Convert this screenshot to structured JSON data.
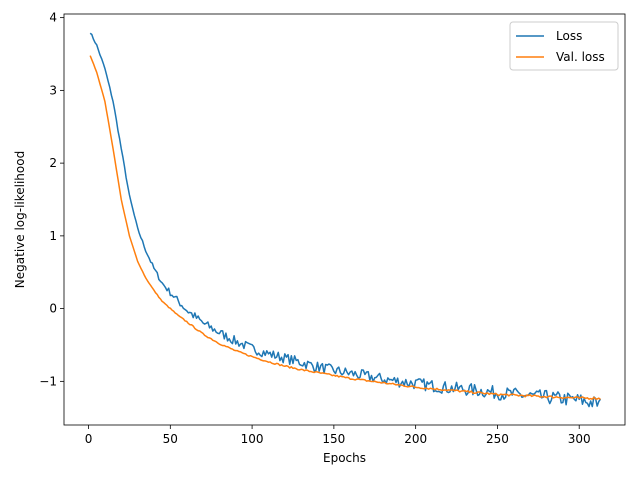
{
  "chart_data": {
    "type": "line",
    "title": "",
    "xlabel": "Epochs",
    "ylabel": "Negative log-likelihood",
    "xlim": [
      -15,
      328
    ],
    "ylim": [
      -1.6,
      4.05
    ],
    "xticks": [
      0,
      50,
      100,
      150,
      200,
      250,
      300
    ],
    "yticks": [
      -1,
      0,
      1,
      2,
      3,
      4
    ],
    "grid": false,
    "legend_position": "top-right",
    "series": [
      {
        "name": "Loss",
        "color": "#1f77b4",
        "anchor_x": [
          1,
          5,
          10,
          15,
          20,
          25,
          30,
          35,
          40,
          45,
          50,
          55,
          60,
          70,
          80,
          90,
          100,
          110,
          120,
          130,
          140,
          150,
          160,
          170,
          180,
          190,
          200,
          210,
          220,
          230,
          240,
          250,
          260,
          270,
          280,
          290,
          300,
          310,
          313
        ],
        "anchor_y": [
          3.8,
          3.62,
          3.3,
          2.85,
          2.2,
          1.55,
          1.1,
          0.8,
          0.55,
          0.35,
          0.22,
          0.1,
          -0.02,
          -0.2,
          -0.33,
          -0.45,
          -0.55,
          -0.62,
          -0.68,
          -0.74,
          -0.8,
          -0.85,
          -0.89,
          -0.93,
          -0.97,
          -1.0,
          -1.03,
          -1.06,
          -1.09,
          -1.11,
          -1.13,
          -1.16,
          -1.18,
          -1.2,
          -1.22,
          -1.24,
          -1.26,
          -1.3,
          -1.32
        ],
        "noise_amplitude": 0.05
      },
      {
        "name": "Val. loss",
        "color": "#ff7f0e",
        "anchor_x": [
          1,
          5,
          10,
          15,
          20,
          25,
          30,
          35,
          40,
          45,
          50,
          55,
          60,
          70,
          80,
          90,
          100,
          110,
          120,
          130,
          140,
          150,
          160,
          170,
          180,
          190,
          200,
          210,
          220,
          230,
          240,
          250,
          260,
          270,
          280,
          290,
          300,
          310,
          313
        ],
        "anchor_y": [
          3.48,
          3.25,
          2.85,
          2.2,
          1.5,
          1.0,
          0.65,
          0.42,
          0.25,
          0.1,
          0.0,
          -0.1,
          -0.18,
          -0.35,
          -0.48,
          -0.58,
          -0.66,
          -0.73,
          -0.79,
          -0.84,
          -0.88,
          -0.92,
          -0.96,
          -0.99,
          -1.02,
          -1.05,
          -1.08,
          -1.1,
          -1.12,
          -1.14,
          -1.16,
          -1.18,
          -1.19,
          -1.2,
          -1.21,
          -1.22,
          -1.23,
          -1.23,
          -1.24
        ],
        "noise_amplitude": 0.008
      }
    ]
  }
}
